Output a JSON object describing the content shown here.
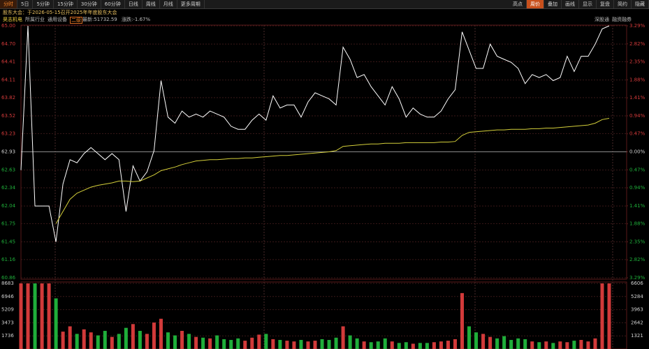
{
  "toolbar": {
    "left_tabs": [
      "分时",
      "5日",
      "5分钟",
      "15分钟",
      "30分钟",
      "60分钟",
      "日线",
      "周线",
      "月线",
      "更多周期"
    ],
    "active_left": 0,
    "right_tabs": [
      "高点",
      "周价",
      "叠加",
      "画线",
      "显示",
      "复盘",
      "简约",
      "隐藏"
    ],
    "active_right": 1
  },
  "notice": "股东大会：于2026-05-15召开2025年年度股东大会",
  "info": {
    "name": "昊志机电",
    "industry_label": "所属行业",
    "industry": "通用设备",
    "level": "二级",
    "latest": "最新:51732.59",
    "change": "涨跌:-1.67%",
    "tags": [
      "深股通",
      "融资融券"
    ]
  },
  "chart_data": {
    "type": "line",
    "price_color": "#ffffff",
    "avg_color": "#d4cf3a",
    "up_color": "#d23a3a",
    "down_color": "#1fae3a",
    "grid": true,
    "series": [
      {
        "color": "#ffffff",
        "values": [
          62.63,
          65.0,
          62.04,
          62.04,
          62.04,
          61.45,
          62.4,
          62.8,
          62.75,
          62.9,
          63.0,
          62.9,
          62.8,
          62.9,
          62.8,
          61.95,
          62.7,
          62.45,
          62.6,
          62.95,
          64.1,
          63.5,
          63.4,
          63.6,
          63.5,
          63.55,
          63.5,
          63.6,
          63.55,
          63.5,
          63.35,
          63.3,
          63.3,
          63.45,
          63.55,
          63.45,
          63.85,
          63.65,
          63.7,
          63.7,
          63.5,
          63.75,
          63.9,
          63.85,
          63.8,
          63.7,
          64.65,
          64.45,
          64.15,
          64.2,
          64.0,
          63.85,
          63.7,
          64.0,
          63.8,
          63.5,
          63.65,
          63.55,
          63.5,
          63.5,
          63.6,
          63.8,
          63.95,
          64.9,
          64.6,
          64.3,
          64.3,
          64.7,
          64.5,
          64.45,
          64.4,
          64.3,
          64.05,
          64.2,
          64.15,
          64.2,
          64.1,
          64.15,
          64.5,
          64.25,
          64.5,
          64.5,
          64.7,
          64.95,
          65.0
        ]
      },
      {
        "color": "#d4cf3a",
        "values": [
          null,
          null,
          null,
          null,
          null,
          61.75,
          61.95,
          62.15,
          62.25,
          62.3,
          62.35,
          62.38,
          62.4,
          62.42,
          62.45,
          62.45,
          62.44,
          62.45,
          62.5,
          62.55,
          62.62,
          62.65,
          62.68,
          62.72,
          62.75,
          62.78,
          62.79,
          62.8,
          62.8,
          62.81,
          62.82,
          62.82,
          62.83,
          62.83,
          62.84,
          62.85,
          62.86,
          62.87,
          62.87,
          62.88,
          62.89,
          62.9,
          62.91,
          62.92,
          62.93,
          62.95,
          63.02,
          63.03,
          63.04,
          63.05,
          63.06,
          63.06,
          63.07,
          63.07,
          63.07,
          63.08,
          63.08,
          63.08,
          63.08,
          63.08,
          63.09,
          63.09,
          63.1,
          63.2,
          63.25,
          63.26,
          63.27,
          63.28,
          63.29,
          63.29,
          63.3,
          63.3,
          63.3,
          63.31,
          63.31,
          63.32,
          63.32,
          63.33,
          63.34,
          63.35,
          63.36,
          63.37,
          63.4,
          63.46,
          63.48
        ]
      }
    ],
    "ylim": [
      60.86,
      65.0
    ],
    "yticks": [
      {
        "value": 65.0,
        "label": "65.00"
      },
      {
        "value": 64.7,
        "label": "64.70"
      },
      64.41,
      64.11,
      63.82,
      63.52,
      63.23,
      62.93,
      62.63,
      62.34,
      62.04,
      61.75,
      61.45,
      61.16,
      60.86
    ],
    "y2lim": [
      -3.29,
      3.29
    ],
    "y2ticks": [
      {
        "value": 3.29,
        "label": "3.29%"
      },
      {
        "value": 2.82,
        "label": "2.82%"
      },
      {
        "value": 2.35,
        "label": "2.35%"
      },
      {
        "value": 1.88,
        "label": "1.88%"
      },
      {
        "value": 1.41,
        "label": "1.41%"
      },
      {
        "value": 0.94,
        "label": "0.94%"
      },
      {
        "value": 0.47,
        "label": "0.47%"
      },
      {
        "value": 0,
        "label": "0.00%"
      },
      {
        "value": -0.47,
        "label": "0.47%"
      },
      {
        "value": -0.94,
        "label": "0.94%"
      },
      {
        "value": -1.41,
        "label": "1.41%"
      },
      {
        "value": -1.88,
        "label": "1.88%"
      },
      {
        "value": -2.35,
        "label": "2.35%"
      },
      {
        "value": -2.82,
        "label": "2.82%"
      },
      {
        "value": -3.29,
        "label": "3.29%"
      }
    ],
    "volume": {
      "type": "bar",
      "values": [
        8683,
        8683,
        8683,
        8683,
        8683,
        6700,
        2300,
        3000,
        2000,
        2600,
        2200,
        1800,
        2400,
        1600,
        2000,
        2800,
        3300,
        2400,
        2000,
        3500,
        4000,
        2200,
        1800,
        2400,
        2000,
        1600,
        1500,
        1400,
        1800,
        1300,
        1200,
        1400,
        1100,
        1500,
        1900,
        2000,
        1300,
        1200,
        1100,
        1000,
        1200,
        1000,
        1100,
        1300,
        1200,
        1500,
        3000,
        1800,
        1400,
        1000,
        900,
        1000,
        1400,
        1000,
        800,
        900,
        700,
        800,
        800,
        900,
        1000,
        1100,
        1300,
        7400,
        3000,
        2200,
        2000,
        1600,
        1400,
        1700,
        1200,
        1400,
        1300,
        1000,
        900,
        1000,
        800,
        1000,
        900,
        1100,
        1200,
        1000,
        1400,
        8683,
        8683
      ],
      "ylim": [
        0,
        8683
      ],
      "yticks": [
        8683,
        6946,
        5209,
        3473,
        1736
      ],
      "y2lim": [
        0,
        6606
      ],
      "y2ticks": [
        6606,
        5284,
        3963,
        2642,
        1321
      ]
    }
  }
}
